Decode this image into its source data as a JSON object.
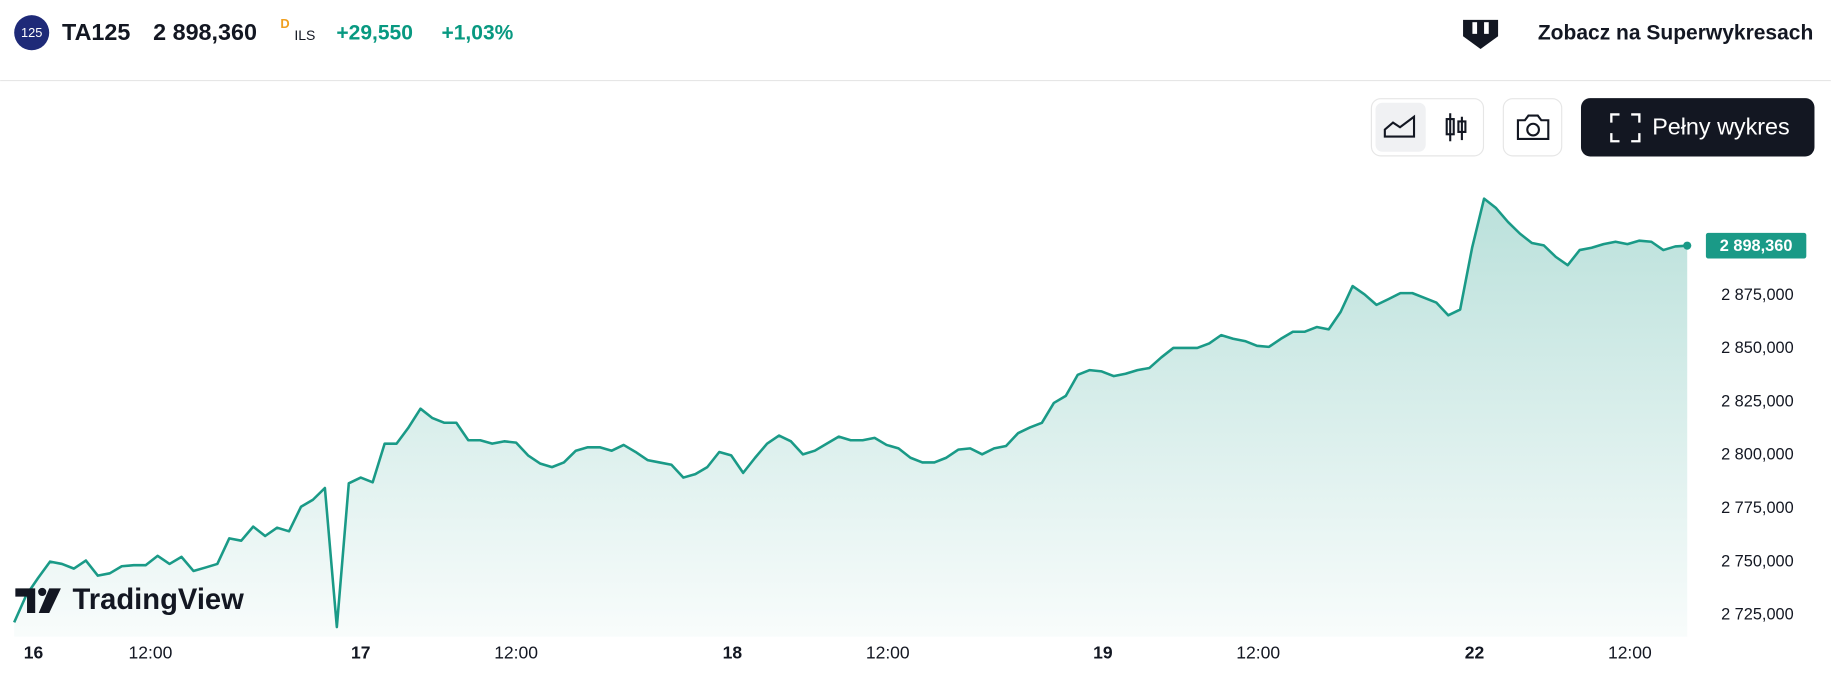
{
  "header": {
    "badge": "125",
    "symbol": "TA125",
    "price": "2 898,360",
    "flag": "D",
    "currency": "ILS",
    "change": "+29,550",
    "change_pct": "+1,03%",
    "link": "Zobacz na Superwykresach",
    "button": "Pełny wykres"
  },
  "chart_data": {
    "type": "area",
    "color": "#1a9a87",
    "logo": "TradingView",
    "values": [
      2721700,
      2734300,
      2742500,
      2750200,
      2749100,
      2746900,
      2750700,
      2743600,
      2744700,
      2748000,
      2748500,
      2748500,
      2752900,
      2749100,
      2752400,
      2745800,
      2747400,
      2749100,
      2761100,
      2760000,
      2766600,
      2762200,
      2766100,
      2764400,
      2775900,
      2779200,
      2784700,
      2719500,
      2786900,
      2789600,
      2787400,
      2805500,
      2805500,
      2813100,
      2821900,
      2817500,
      2815300,
      2815300,
      2807100,
      2807100,
      2805500,
      2806600,
      2806000,
      2800000,
      2796200,
      2794500,
      2796700,
      2802200,
      2803800,
      2803800,
      2802200,
      2804900,
      2801600,
      2797800,
      2796700,
      2795600,
      2789600,
      2791200,
      2794500,
      2801600,
      2800000,
      2791800,
      2798900,
      2805500,
      2809300,
      2806600,
      2800500,
      2802200,
      2805500,
      2808800,
      2807100,
      2807100,
      2808200,
      2804900,
      2803300,
      2798900,
      2796700,
      2796700,
      2798900,
      2802700,
      2803300,
      2800500,
      2803300,
      2804400,
      2810400,
      2813100,
      2815300,
      2824600,
      2827900,
      2837800,
      2840000,
      2839400,
      2837200,
      2838300,
      2840000,
      2841000,
      2846000,
      2850400,
      2850400,
      2850400,
      2852500,
      2856400,
      2854700,
      2853600,
      2851400,
      2850900,
      2854700,
      2858000,
      2858000,
      2860200,
      2859100,
      2867300,
      2879400,
      2875500,
      2870600,
      2873300,
      2876100,
      2876100,
      2873900,
      2871700,
      2865700,
      2868400,
      2897400,
      2920400,
      2916000,
      2909500,
      2904000,
      2899600,
      2898500,
      2893100,
      2889200,
      2896300,
      2897400,
      2899100,
      2900200,
      2899100,
      2900700,
      2900200,
      2896300,
      2898000,
      2898360
    ],
    "last_label": {
      "value": 2898360,
      "label": "2 898,360"
    },
    "xlim": [
      0,
      140
    ],
    "xticks": [
      {
        "value": 0.8,
        "label": "16"
      },
      {
        "value": 11.4,
        "label": "12:00"
      },
      {
        "value": 29,
        "label": "17"
      },
      {
        "value": 42,
        "label": "12:00"
      },
      {
        "value": 60.1,
        "label": "18"
      },
      {
        "value": 73.1,
        "label": "12:00"
      },
      {
        "value": 91.1,
        "label": "19"
      },
      {
        "value": 104.1,
        "label": "12:00"
      },
      {
        "value": 122.2,
        "label": "22"
      },
      {
        "value": 135.2,
        "label": "12:00"
      }
    ],
    "ylim": [
      2715000,
      2935000
    ],
    "yticks": [
      {
        "value": 2725000,
        "label": "2 725,000"
      },
      {
        "value": 2750000,
        "label": "2 750,000"
      },
      {
        "value": 2775000,
        "label": "2 775,000"
      },
      {
        "value": 2800000,
        "label": "2 800,000"
      },
      {
        "value": 2825000,
        "label": "2 825,000"
      },
      {
        "value": 2850000,
        "label": "2 850,000"
      },
      {
        "value": 2875000,
        "label": "2 875,000"
      }
    ]
  }
}
